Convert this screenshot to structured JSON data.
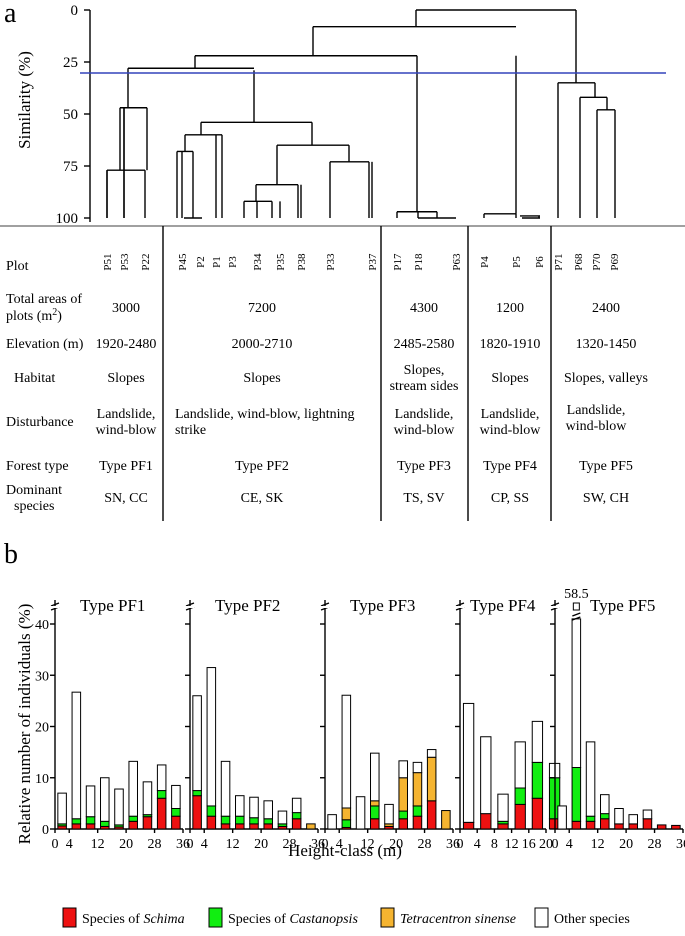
{
  "panel_a": {
    "letter": "a",
    "y_axis": {
      "label": "Similarity (%)",
      "ticks": [
        "0",
        "25",
        "50",
        "75",
        "100"
      ]
    },
    "cut_line_similarity": 30,
    "plots": [
      "P51",
      "P53",
      "P22",
      "P45",
      "P2",
      "P1",
      "P3",
      "P34",
      "P35",
      "P38",
      "P33",
      "P37",
      "P17",
      "P18",
      "P63",
      "P4",
      "P5",
      "P6",
      "P71",
      "P68",
      "P70",
      "P69"
    ],
    "row_labels": {
      "plot": "Plot",
      "areas_line1": "Total areas of",
      "areas_line2": "plots (m",
      "areas_sup": "2",
      "areas_close": ")",
      "elevation": "Elevation (m)",
      "habitat": "Habitat",
      "disturbance": "Disturbance",
      "forest_type": "Forest type",
      "dominant_line1": "Dominant",
      "dominant_line2": "species"
    },
    "groups": [
      {
        "area": "3000",
        "elevation": "1920-2480",
        "habitat": [
          "Slopes"
        ],
        "disturbance": [
          "Landslide,",
          "wind-blow"
        ],
        "forest_type": "Type PF1",
        "dominant": "SN, CC"
      },
      {
        "area": "7200",
        "elevation": "2000-2710",
        "habitat": [
          "Slopes"
        ],
        "disturbance": [
          "Landslide, wind-blow, lightning",
          "strike"
        ],
        "forest_type": "Type PF2",
        "dominant": "CE, SK"
      },
      {
        "area": "4300",
        "elevation": "2485-2580",
        "habitat": [
          "Slopes,",
          "stream sides"
        ],
        "disturbance": [
          "Landslide,",
          "wind-blow"
        ],
        "forest_type": "Type PF3",
        "dominant": "TS, SV"
      },
      {
        "area": "1200",
        "elevation": "1820-1910",
        "habitat": [
          "Slopes"
        ],
        "disturbance": [
          "Landslide,",
          "wind-blow"
        ],
        "forest_type": "Type PF4",
        "dominant": "CP, SS"
      },
      {
        "area": "2400",
        "elevation": "1320-1450",
        "habitat": [
          "Slopes, valleys"
        ],
        "disturbance": [
          "Landslide,",
          "wind-blow"
        ],
        "forest_type": "Type PF5",
        "dominant": "SW, CH"
      }
    ]
  },
  "panel_b": {
    "letter": "b",
    "y_label": "Relative number of individuals (%)",
    "x_label": "Height-class (m)",
    "off_scale_label": "58.5",
    "legend": [
      {
        "key": "schima",
        "prefix": "Species of ",
        "italic": "Schima",
        "color": "#ee1111"
      },
      {
        "key": "castanopsis",
        "prefix": "Species of ",
        "italic": "Castanopsis",
        "color": "#11ee11"
      },
      {
        "key": "tetracentron",
        "prefix": "",
        "italic": "Tetracentron sinense",
        "color": "#f5b430"
      },
      {
        "key": "other",
        "prefix": "",
        "italic": "",
        "text": "Other species",
        "color": "#ffffff"
      }
    ]
  },
  "chart_data": [
    {
      "type": "bar",
      "title": "Type PF1",
      "xlabel": "Height-class (m)",
      "ylabel": "Relative number of individuals (%)",
      "ylim": [
        0,
        40
      ],
      "yticks": [
        "0",
        "10",
        "20",
        "30",
        "40"
      ],
      "xlim": [
        0,
        36
      ],
      "xticks": [
        "0",
        "4",
        "12",
        "20",
        "28",
        "36"
      ],
      "stacked": true,
      "series_order": [
        "schima",
        "castanopsis",
        "tetracentron",
        "other"
      ],
      "bars": [
        {
          "x": 2,
          "schima": 0.6,
          "castanopsis": 0.4,
          "tetracentron": 0,
          "other": 6.0
        },
        {
          "x": 6,
          "schima": 1.0,
          "castanopsis": 1.0,
          "tetracentron": 0,
          "other": 24.7
        },
        {
          "x": 10,
          "schima": 1.0,
          "castanopsis": 1.4,
          "tetracentron": 0,
          "other": 6.0
        },
        {
          "x": 14,
          "schima": 0.5,
          "castanopsis": 1.0,
          "tetracentron": 0,
          "other": 8.5
        },
        {
          "x": 18,
          "schima": 0.4,
          "castanopsis": 0.4,
          "tetracentron": 0,
          "other": 7.0
        },
        {
          "x": 22,
          "schima": 1.5,
          "castanopsis": 1.0,
          "tetracentron": 0,
          "other": 10.7
        },
        {
          "x": 26,
          "schima": 2.4,
          "castanopsis": 0.4,
          "tetracentron": 0,
          "other": 6.4
        },
        {
          "x": 30,
          "schima": 6.0,
          "castanopsis": 1.5,
          "tetracentron": 0,
          "other": 5.0
        },
        {
          "x": 34,
          "schima": 2.5,
          "castanopsis": 1.5,
          "tetracentron": 0,
          "other": 4.5
        }
      ]
    },
    {
      "type": "bar",
      "title": "Type PF2",
      "ylim": [
        0,
        40
      ],
      "xlim": [
        0,
        36
      ],
      "xticks": [
        "0",
        "4",
        "12",
        "20",
        "28",
        "36"
      ],
      "stacked": true,
      "series_order": [
        "schima",
        "castanopsis",
        "tetracentron",
        "other"
      ],
      "bars": [
        {
          "x": 2,
          "schima": 6.5,
          "castanopsis": 1.0,
          "tetracentron": 0,
          "other": 18.5
        },
        {
          "x": 6,
          "schima": 2.5,
          "castanopsis": 2.0,
          "tetracentron": 0,
          "other": 27.0
        },
        {
          "x": 10,
          "schima": 1.0,
          "castanopsis": 1.5,
          "tetracentron": 0,
          "other": 10.7
        },
        {
          "x": 14,
          "schima": 1.0,
          "castanopsis": 1.5,
          "tetracentron": 0,
          "other": 4.0
        },
        {
          "x": 18,
          "schima": 1.0,
          "castanopsis": 1.2,
          "tetracentron": 0,
          "other": 4.0
        },
        {
          "x": 22,
          "schima": 1.0,
          "castanopsis": 1.0,
          "tetracentron": 0,
          "other": 3.5
        },
        {
          "x": 26,
          "schima": 0.5,
          "castanopsis": 0.5,
          "tetracentron": 0,
          "other": 2.5
        },
        {
          "x": 30,
          "schima": 2.0,
          "castanopsis": 1.2,
          "tetracentron": 0,
          "other": 2.8
        },
        {
          "x": 34,
          "schima": 0,
          "castanopsis": 0,
          "tetracentron": 1.0,
          "other": 0
        }
      ]
    },
    {
      "type": "bar",
      "title": "Type PF3",
      "ylim": [
        0,
        40
      ],
      "xlim": [
        0,
        36
      ],
      "xticks": [
        "0",
        "4",
        "12",
        "20",
        "28",
        "36"
      ],
      "stacked": true,
      "series_order": [
        "schima",
        "castanopsis",
        "tetracentron",
        "other"
      ],
      "bars": [
        {
          "x": 2,
          "schima": 0,
          "castanopsis": 0,
          "tetracentron": 0,
          "other": 2.8
        },
        {
          "x": 6,
          "schima": 0.3,
          "castanopsis": 1.5,
          "tetracentron": 2.3,
          "other": 22.0
        },
        {
          "x": 10,
          "schima": 0,
          "castanopsis": 0,
          "tetracentron": 0,
          "other": 6.3
        },
        {
          "x": 14,
          "schima": 2.0,
          "castanopsis": 2.5,
          "tetracentron": 1.0,
          "other": 9.3
        },
        {
          "x": 18,
          "schima": 0.5,
          "castanopsis": 0,
          "tetracentron": 0.5,
          "other": 3.8
        },
        {
          "x": 22,
          "schima": 2.0,
          "castanopsis": 1.5,
          "tetracentron": 6.5,
          "other": 3.3
        },
        {
          "x": 26,
          "schima": 2.5,
          "castanopsis": 2.0,
          "tetracentron": 6.5,
          "other": 2.0
        },
        {
          "x": 30,
          "schima": 5.5,
          "castanopsis": 0,
          "tetracentron": 8.5,
          "other": 1.5
        },
        {
          "x": 34,
          "schima": 0,
          "castanopsis": 0,
          "tetracentron": 3.6,
          "other": 0
        }
      ]
    },
    {
      "type": "bar",
      "title": "Type PF4",
      "ylim": [
        0,
        40
      ],
      "xlim": [
        0,
        20
      ],
      "xticks": [
        "0",
        "4",
        "8",
        "12",
        "16",
        "20"
      ],
      "stacked": true,
      "series_order": [
        "schima",
        "castanopsis",
        "tetracentron",
        "other"
      ],
      "bars": [
        {
          "x": 2,
          "schima": 1.3,
          "castanopsis": 0,
          "tetracentron": 0,
          "other": 23.2
        },
        {
          "x": 6,
          "schima": 3.0,
          "castanopsis": 0,
          "tetracentron": 0,
          "other": 15.0
        },
        {
          "x": 10,
          "schima": 1.0,
          "castanopsis": 0.5,
          "tetracentron": 0,
          "other": 5.3
        },
        {
          "x": 14,
          "schima": 4.8,
          "castanopsis": 3.2,
          "tetracentron": 0,
          "other": 9.0
        },
        {
          "x": 18,
          "schima": 6.0,
          "castanopsis": 7.0,
          "tetracentron": 0,
          "other": 8.0
        },
        {
          "x": 22,
          "schima": 2.0,
          "castanopsis": 8.0,
          "tetracentron": 0,
          "other": 2.8
        }
      ]
    },
    {
      "type": "bar",
      "title": "Type PF5",
      "ylim": [
        0,
        40
      ],
      "xlim": [
        0,
        36
      ],
      "xticks": [
        "0",
        "4",
        "12",
        "20",
        "28",
        "36"
      ],
      "stacked": true,
      "series_order": [
        "schima",
        "castanopsis",
        "tetracentron",
        "other"
      ],
      "off_scale": {
        "x": 6,
        "value": 58.5
      },
      "bars": [
        {
          "x": 2,
          "schima": 0,
          "castanopsis": 0,
          "tetracentron": 0,
          "other": 4.5
        },
        {
          "x": 6,
          "schima": 1.5,
          "castanopsis": 10.5,
          "tetracentron": 0,
          "other": 46.5
        },
        {
          "x": 10,
          "schima": 1.5,
          "castanopsis": 1.0,
          "tetracentron": 0,
          "other": 14.5
        },
        {
          "x": 14,
          "schima": 2.0,
          "castanopsis": 1.0,
          "tetracentron": 0,
          "other": 3.7
        },
        {
          "x": 18,
          "schima": 1.0,
          "castanopsis": 0,
          "tetracentron": 0,
          "other": 3.0
        },
        {
          "x": 22,
          "schima": 1.0,
          "castanopsis": 0,
          "tetracentron": 0,
          "other": 1.8
        },
        {
          "x": 26,
          "schima": 2.0,
          "castanopsis": 0,
          "tetracentron": 0,
          "other": 1.7
        },
        {
          "x": 30,
          "schima": 0.8,
          "castanopsis": 0,
          "tetracentron": 0,
          "other": 0
        },
        {
          "x": 34,
          "schima": 0.7,
          "castanopsis": 0,
          "tetracentron": 0,
          "other": 0
        }
      ]
    }
  ]
}
